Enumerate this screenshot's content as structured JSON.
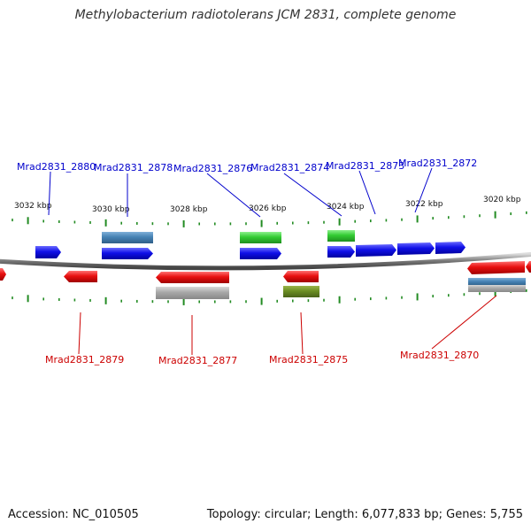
{
  "title": "Methylobacterium radiotolerans JCM 2831, complete genome",
  "accession": "Accession: NC_010505",
  "summary": "Topology: circular; Length: 6,077,833 bp; Genes: 5,755",
  "colors": {
    "forward_gene": "#1010e8",
    "reverse_gene": "#e81010",
    "rna_green": "#33cc33",
    "olive": "#6b8e23",
    "steel": "#4682b4",
    "gray": "#a8a8a8",
    "tick": "#228b22",
    "backbone": "#777777",
    "label_forward": "#0000cc",
    "label_reverse": "#cc0000"
  },
  "scale_labels": [
    "3032 kbp",
    "3030 kbp",
    "3028 kbp",
    "3026 kbp",
    "3024 kbp",
    "3022 kbp",
    "3020 kbp"
  ],
  "top_labels": [
    "Mrad2831_2880",
    "Mrad2831_2878",
    "Mrad2831_2876",
    "Mrad2831_2874",
    "Mrad2831_2873",
    "Mrad2831_2872"
  ],
  "bottom_labels": [
    "Mrad2831_2879",
    "Mrad2831_2877",
    "Mrad2831_2875",
    "Mrad2831_2870"
  ]
}
